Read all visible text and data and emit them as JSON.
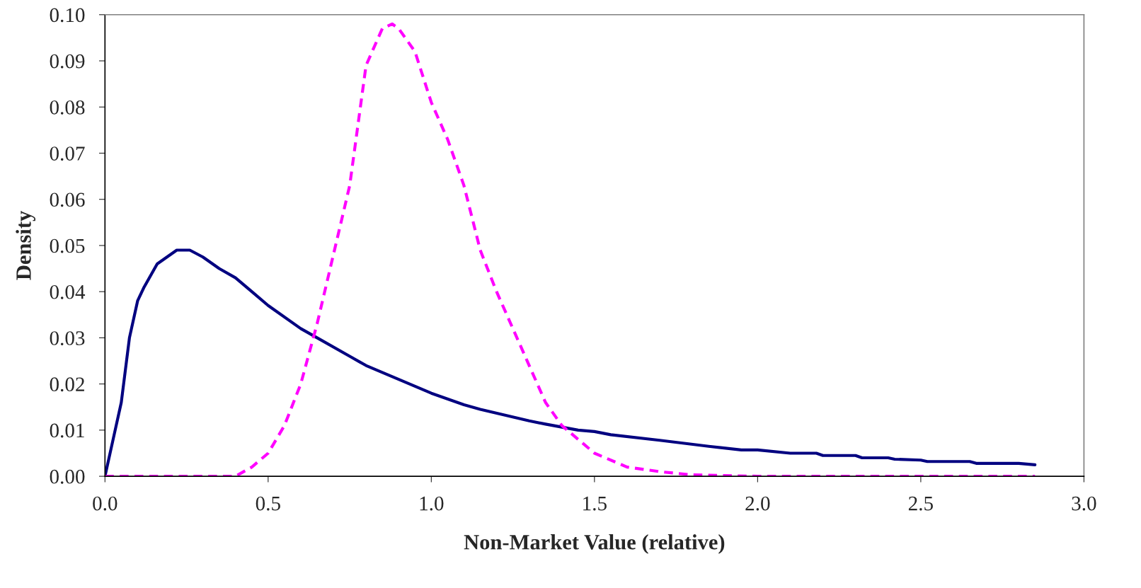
{
  "chart_data": {
    "type": "line",
    "xlabel": "Non-Market Value (relative)",
    "ylabel": "Density",
    "xlim": [
      0,
      3.0
    ],
    "xticks": [
      {
        "value": 0,
        "label": "0.0"
      },
      0.5,
      {
        "value": 1,
        "label": "1.0"
      },
      1.5,
      {
        "value": 2,
        "label": "2.0"
      },
      2.5,
      {
        "value": 3,
        "label": "3.0"
      }
    ],
    "ylim": [
      0,
      0.1
    ],
    "yticks": [
      {
        "value": 0,
        "label": "0.00"
      },
      {
        "value": 0.01,
        "label": "0.01"
      },
      {
        "value": 0.02,
        "label": "0.02"
      },
      {
        "value": 0.03,
        "label": "0.03"
      },
      {
        "value": 0.04,
        "label": "0.04"
      },
      {
        "value": 0.05,
        "label": "0.05"
      },
      {
        "value": 0.06,
        "label": "0.06"
      },
      {
        "value": 0.07,
        "label": "0.07"
      },
      {
        "value": 0.08,
        "label": "0.08"
      },
      {
        "value": 0.09,
        "label": "0.09"
      },
      {
        "value": 0.1,
        "label": "0.10"
      }
    ],
    "grid": false,
    "legend": false,
    "series": [
      {
        "color": "#000080",
        "line_style": "solid",
        "x": [
          0,
          0.025,
          0.05,
          0.075,
          0.1,
          0.12,
          0.16,
          0.2,
          0.22,
          0.26,
          0.3,
          0.35,
          0.4,
          0.45,
          0.5,
          0.6,
          0.65,
          0.75,
          0.8,
          0.9,
          1.0,
          1.1,
          1.15,
          1.3,
          1.35,
          1.45,
          1.5,
          1.55,
          1.7,
          1.85,
          1.95,
          2.0,
          2.1,
          2.18,
          2.2,
          2.3,
          2.32,
          2.4,
          2.42,
          2.5,
          2.52,
          2.65,
          2.67,
          2.8,
          2.85
        ],
        "values": [
          0,
          0.008,
          0.016,
          0.03,
          0.038,
          0.041,
          0.046,
          0.048,
          0.049,
          0.049,
          0.0475,
          0.045,
          0.043,
          0.04,
          0.037,
          0.032,
          0.03,
          0.026,
          0.024,
          0.021,
          0.018,
          0.0155,
          0.0145,
          0.012,
          0.0113,
          0.01,
          0.0097,
          0.009,
          0.0078,
          0.0065,
          0.0057,
          0.0057,
          0.005,
          0.005,
          0.0045,
          0.0045,
          0.004,
          0.004,
          0.0037,
          0.0035,
          0.0032,
          0.0032,
          0.0028,
          0.0028,
          0.0025
        ]
      },
      {
        "color": "#ff00ff",
        "line_style": "dashed",
        "x": [
          0,
          0.4,
          0.45,
          0.5,
          0.55,
          0.6,
          0.65,
          0.7,
          0.75,
          0.8,
          0.85,
          0.88,
          0.9,
          0.95,
          1.0,
          1.05,
          1.1,
          1.15,
          1.2,
          1.25,
          1.3,
          1.35,
          1.4,
          1.5,
          1.6,
          1.7,
          1.8,
          2.0,
          2.85
        ],
        "values": [
          0,
          0,
          0.002,
          0.005,
          0.011,
          0.02,
          0.033,
          0.048,
          0.063,
          0.089,
          0.097,
          0.098,
          0.097,
          0.092,
          0.081,
          0.073,
          0.063,
          0.049,
          0.04,
          0.032,
          0.024,
          0.016,
          0.011,
          0.005,
          0.002,
          0.001,
          0.0003,
          0,
          0
        ]
      }
    ]
  }
}
